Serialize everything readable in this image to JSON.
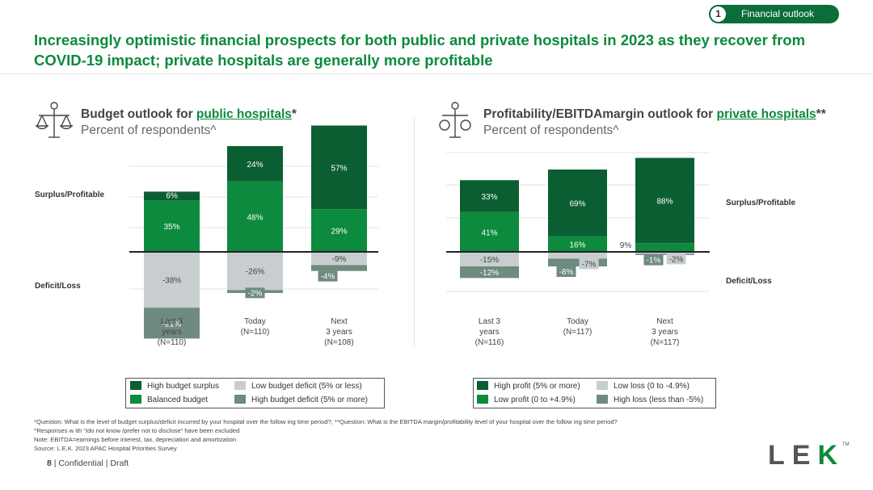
{
  "section_badge": {
    "number": "1",
    "label": "Financial outlook"
  },
  "title": "Increasingly optimistic financial prospects for both public and private hospitals in 2023 as they recover from COVID-19 impact; private hospitals are generally more profitable",
  "colors": {
    "high_positive": "#0b5e31",
    "balanced_positive": "#0c8a3d",
    "low_negative": "#c8ced0",
    "high_negative": "#6f8a7e",
    "brand_green": "#0c8a3d"
  },
  "icons": {
    "left": "scale-people-icon",
    "right": "scale-money-bags-icon"
  },
  "chart_data": [
    {
      "type": "bar",
      "stacked": "diverging",
      "title_prefix": "Budget outlook for ",
      "title_link": "public hospitals",
      "title_suffix": "*",
      "subtitle": "Percent of respondents^",
      "upper_label": "Surplus/Profitable",
      "lower_label": "Deficit/Loss",
      "categories": [
        {
          "line1": "Last 3",
          "line2": "years",
          "line3": "(N=110)"
        },
        {
          "line1": "Today",
          "line2": "(N=110)",
          "line3": ""
        },
        {
          "line1": "Next",
          "line2": "3 years",
          "line3": "(N=108)"
        }
      ],
      "series": [
        {
          "name": "High budget surplus",
          "values": [
            6,
            24,
            57
          ]
        },
        {
          "name": "Balanced budget",
          "values": [
            35,
            48,
            29
          ]
        },
        {
          "name": "Low budget deficit (5% or less)",
          "values": [
            -38,
            -26,
            -9
          ]
        },
        {
          "name": "High budget deficit (5% or more)",
          "values": [
            -21,
            -2,
            -4
          ]
        }
      ],
      "labels": [
        [
          "6%",
          "24%",
          "57%"
        ],
        [
          "35%",
          "48%",
          "29%"
        ],
        [
          "-38%",
          "-26%",
          "-9%"
        ],
        [
          "-21%",
          "-2%",
          "-4%"
        ]
      ],
      "legend": [
        {
          "label": "High budget surplus"
        },
        {
          "label": "Low budget deficit (5% or less)"
        },
        {
          "label": "Balanced budget"
        },
        {
          "label": "High budget deficit (5% or more)"
        }
      ]
    },
    {
      "type": "bar",
      "stacked": "diverging",
      "title_prefix": "Profitability/EBITDAmargin outlook for ",
      "title_link": "private hospitals",
      "title_suffix": "**",
      "subtitle": "Percent of respondents^",
      "upper_label": "Surplus/Profitable",
      "lower_label": "Deficit/Loss",
      "categories": [
        {
          "line1": "Last 3",
          "line2": "years",
          "line3": "(N=116)"
        },
        {
          "line1": "Today",
          "line2": "(N=117)",
          "line3": ""
        },
        {
          "line1": "Next",
          "line2": "3 years",
          "line3": "(N=117)"
        }
      ],
      "series": [
        {
          "name": "High profit (5% or more)",
          "values": [
            33,
            69,
            88
          ]
        },
        {
          "name": "Low profit (0 to +4.9%)",
          "values": [
            41,
            16,
            9
          ]
        },
        {
          "name": "Low loss (0 to -4.9%)",
          "values": [
            -15,
            -7,
            -2
          ]
        },
        {
          "name": "High loss (less than -5%)",
          "values": [
            -12,
            -8,
            -1
          ]
        }
      ],
      "labels": [
        [
          "33%",
          "69%",
          "88%"
        ],
        [
          "41%",
          "16%",
          "9%"
        ],
        [
          "-15%",
          "-7%",
          "-2%"
        ],
        [
          "-12%",
          "-8%",
          "-1%"
        ]
      ],
      "legend": [
        {
          "label": "High profit (5% or more)"
        },
        {
          "label": "Low loss (0 to -4.9%)"
        },
        {
          "label": "Low profit (0 to +4.9%)"
        },
        {
          "label": "High loss (less than -5%)"
        }
      ]
    }
  ],
  "footnotes": {
    "line1": "*Question: What is the level of budget surplus/deficit incurred by your hospital over the follow ing time period?; **Question: What is the EBITDA margin/profitability level of your hospital over the follow ing time period?",
    "line2": "^Responses w ith “Ido not know /prefer not to disclose” have been excluded",
    "line3": "Note: EBITDA=earnings before interest, tax, depreciation and amortization",
    "line4": "Source: L.E.K. 2023 APAC Hospital Priorities Survey"
  },
  "footer": {
    "page": "8",
    "text": " | Confidential | Draft"
  },
  "logo": {
    "l": "L",
    "e": "E",
    "k": "K",
    "tm": "TM"
  }
}
